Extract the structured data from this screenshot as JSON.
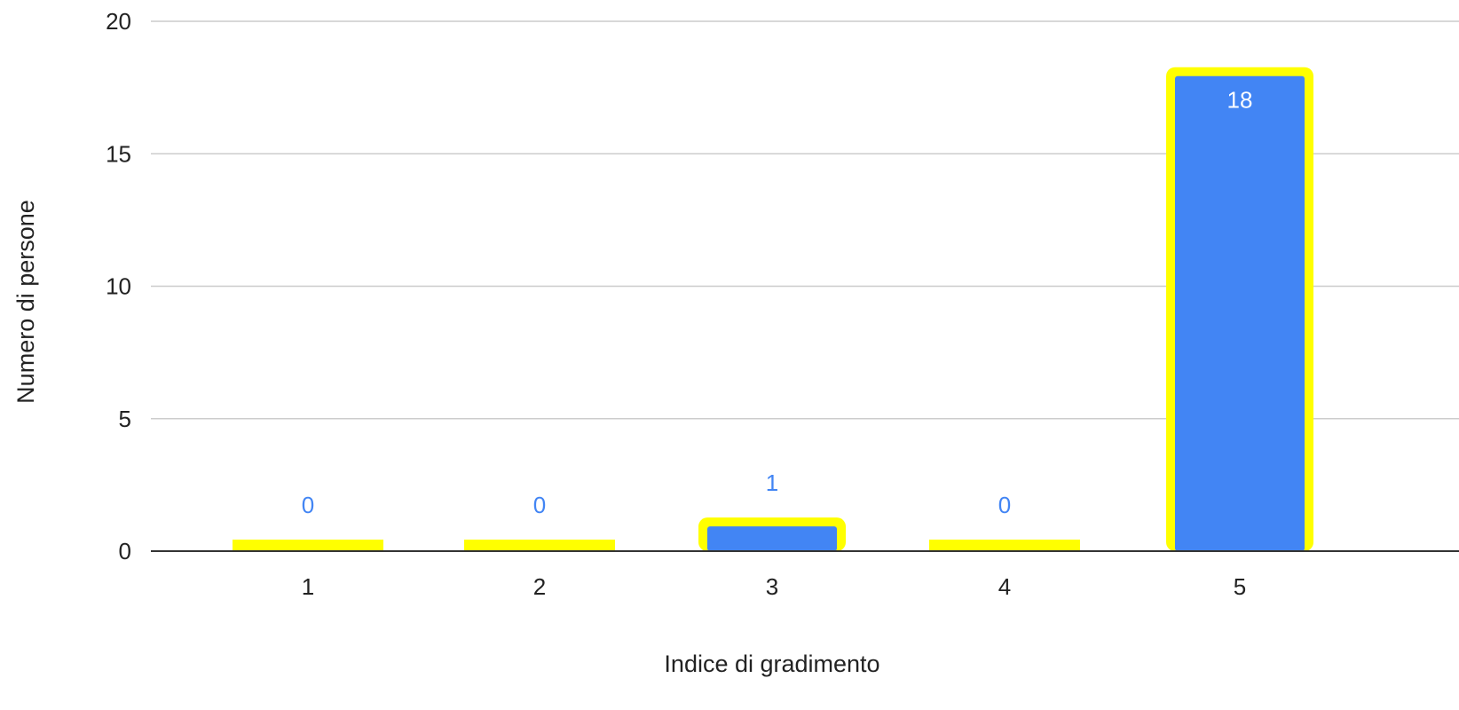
{
  "chart_data": {
    "type": "bar",
    "title": "",
    "xlabel": "Indice di gradimento",
    "ylabel": "Numero di persone",
    "categories": [
      "1",
      "2",
      "3",
      "4",
      "5"
    ],
    "values": [
      0,
      0,
      1,
      0,
      18
    ],
    "data_labels": [
      "0",
      "0",
      "1",
      "0",
      "18"
    ],
    "ylim": [
      0,
      20
    ],
    "yticks": [
      0,
      5,
      10,
      15,
      20
    ],
    "ytick_labels": [
      "0",
      "5",
      "10",
      "15",
      "20"
    ],
    "grid": true,
    "legend": "none",
    "colors": {
      "bar_fill": "#4285f4",
      "bar_highlight": "#ffff00",
      "gridline": "#cccccc",
      "baseline": "#333333",
      "label_outside": "#4285f4",
      "label_inside": "#ffffff"
    }
  }
}
